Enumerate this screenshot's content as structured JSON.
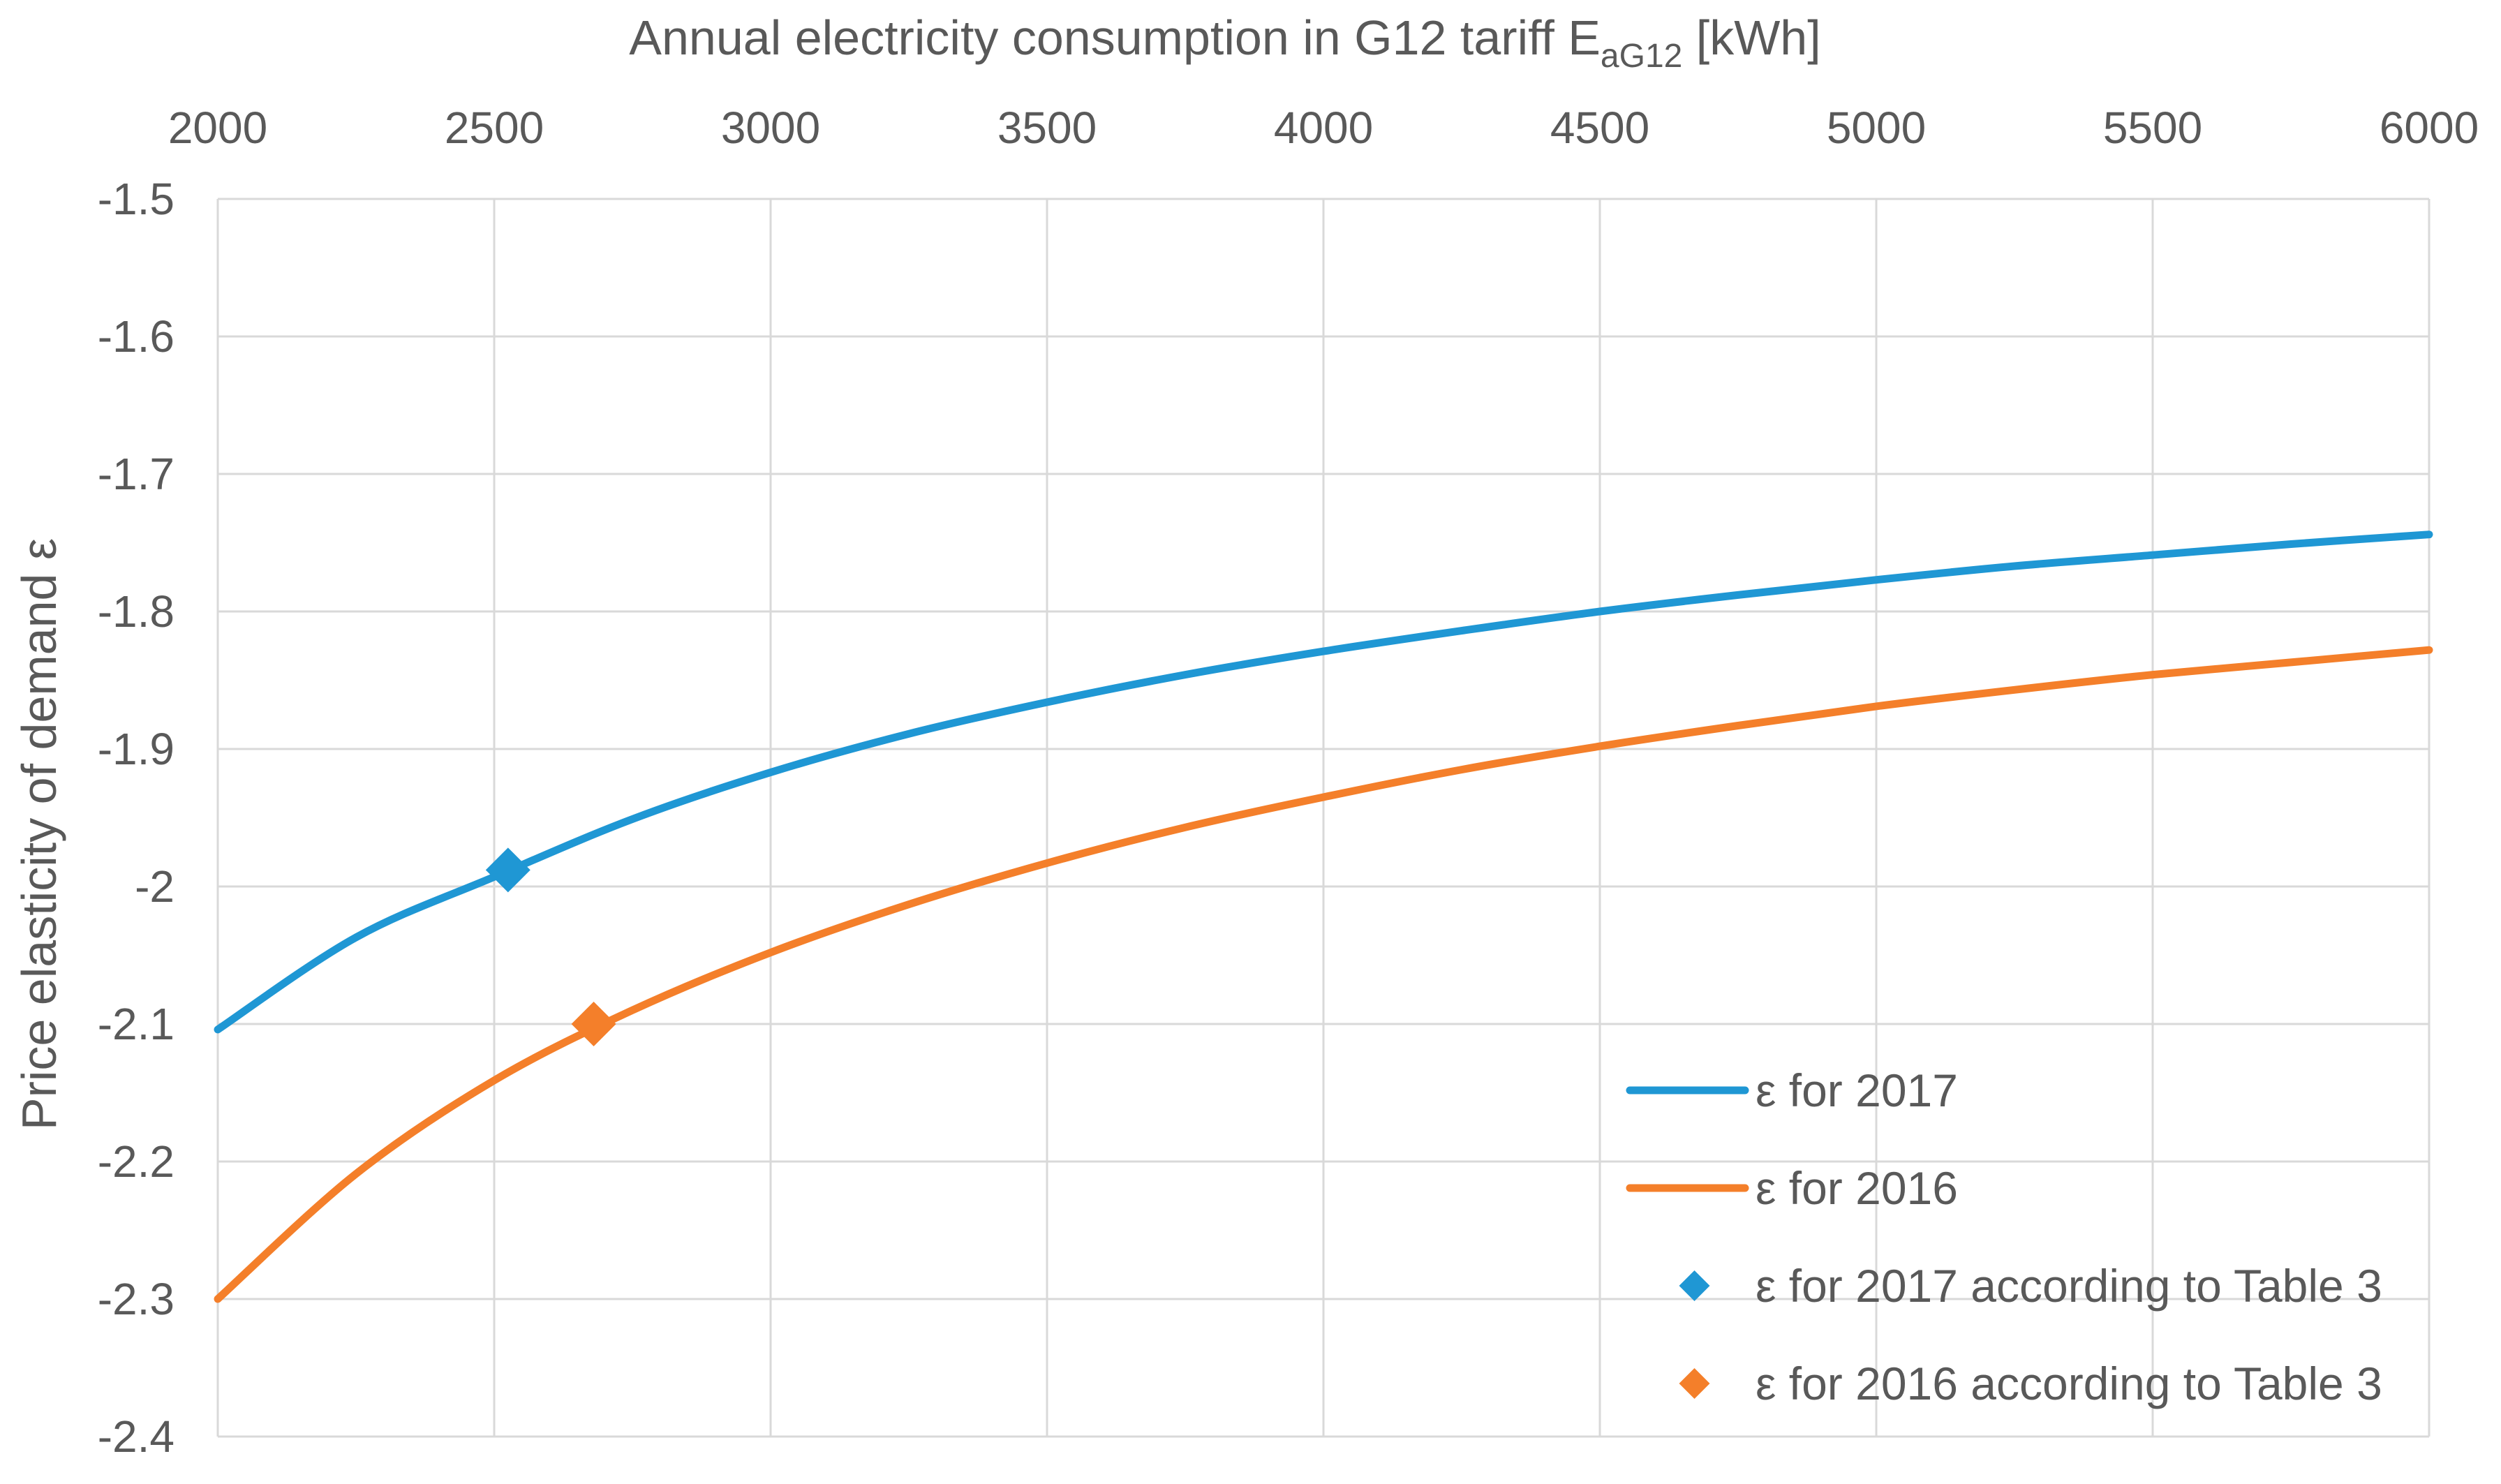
{
  "chart_data": {
    "type": "line",
    "title": "",
    "xlabel": "Annual electricity consumption in G12 tariff E",
    "xlabel_subscript": "aG12",
    "xlabel_unit": " [kWh]",
    "ylabel": "Price elasticity of demand ε",
    "x_axis_position": "top",
    "xlim": [
      2000,
      6000
    ],
    "ylim": [
      -2.4,
      -1.5
    ],
    "x_ticks": [
      2000,
      2500,
      3000,
      3500,
      4000,
      4500,
      5000,
      5500,
      6000
    ],
    "x_tick_labels": [
      "2000",
      "2500",
      "3000",
      "3500",
      "4000",
      "4500",
      "5000",
      "5500",
      "6000"
    ],
    "y_ticks": [
      -1.5,
      -1.6,
      -1.7,
      -1.8,
      -1.9,
      -2.0,
      -2.1,
      -2.2,
      -2.3,
      -2.4
    ],
    "y_tick_labels": [
      "-1.5",
      "-1.6",
      "-1.7",
      "-1.8",
      "-1.9",
      "-2",
      "-2.1",
      "-2.2",
      "-2.3",
      "-2.4"
    ],
    "grid": true,
    "legend_position": "bottom-right",
    "series": [
      {
        "name": "ε for 2017",
        "kind": "line",
        "color": "#1f97d4",
        "x": [
          2000,
          2250,
          2500,
          2750,
          3000,
          3250,
          3500,
          3750,
          4000,
          4250,
          4500,
          4750,
          5000,
          5250,
          5500,
          5750,
          6000
        ],
        "values": [
          -2.104,
          -2.037,
          -1.993,
          -1.951,
          -1.917,
          -1.889,
          -1.866,
          -1.846,
          -1.829,
          -1.814,
          -1.8,
          -1.788,
          -1.777,
          -1.767,
          -1.759,
          -1.751,
          -1.744
        ]
      },
      {
        "name": "ε for 2016",
        "kind": "line",
        "color": "#f47f2a",
        "x": [
          2000,
          2250,
          2500,
          2750,
          3000,
          3250,
          3500,
          3750,
          4000,
          4250,
          4500,
          4750,
          5000,
          5250,
          5500,
          5750,
          6000
        ],
        "values": [
          -2.3,
          -2.209,
          -2.141,
          -2.09,
          -2.048,
          -2.013,
          -1.983,
          -1.957,
          -1.935,
          -1.915,
          -1.898,
          -1.883,
          -1.869,
          -1.857,
          -1.846,
          -1.837,
          -1.828
        ]
      },
      {
        "name": "ε for 2017 according to Table 3",
        "kind": "marker",
        "marker": "diamond",
        "color": "#1f97d4",
        "x": [
          2525
        ],
        "values": [
          -1.988
        ]
      },
      {
        "name": "ε for 2016 according to Table 3",
        "kind": "marker",
        "marker": "diamond",
        "color": "#f47f2a",
        "x": [
          2680
        ],
        "values": [
          -2.1
        ]
      }
    ]
  }
}
